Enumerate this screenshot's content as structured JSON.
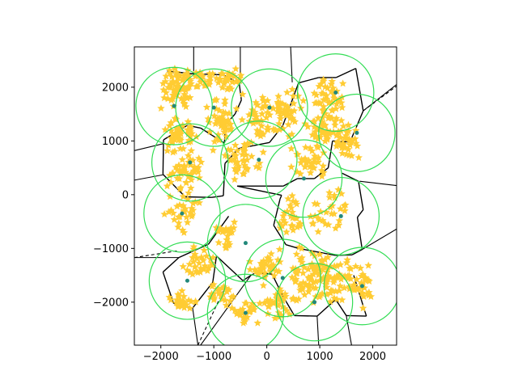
{
  "chart_data": {
    "type": "scatter",
    "title": "",
    "xlabel": "",
    "ylabel": "",
    "xlim": [
      -2500,
      2450
    ],
    "ylim": [
      -2800,
      2750
    ],
    "grid": false,
    "xticks": [
      -2000,
      -1000,
      0,
      1000,
      2000
    ],
    "yticks": [
      -2000,
      -1000,
      0,
      1000,
      2000
    ],
    "xtick_labels": [
      "−2000",
      "−1000",
      "0",
      "1000",
      "2000"
    ],
    "ytick_labels": [
      "−2000",
      "−1000",
      "0",
      "1000",
      "2000"
    ],
    "colors": {
      "circle": "#33dd55",
      "points": "#ffcc33",
      "sites": "#22887a",
      "edges": "#000000"
    },
    "circle_radius": 720,
    "sites": [
      [
        -1750,
        1650
      ],
      [
        -1000,
        1620
      ],
      [
        50,
        1620
      ],
      [
        1300,
        1900
      ],
      [
        1700,
        1150
      ],
      [
        -1450,
        600
      ],
      [
        -150,
        650
      ],
      [
        700,
        300
      ],
      [
        1400,
        -400
      ],
      [
        -1600,
        -350
      ],
      [
        -400,
        -900
      ],
      [
        -1500,
        -1600
      ],
      [
        -400,
        -2200
      ],
      [
        300,
        -1550
      ],
      [
        900,
        -2000
      ],
      [
        1800,
        -1700
      ]
    ],
    "cell_vertices": [
      [
        -1880,
        2300
      ],
      [
        -1400,
        2250
      ],
      [
        -820,
        2230
      ],
      [
        -520,
        2070
      ],
      [
        -480,
        1760
      ],
      [
        -600,
        1500
      ],
      [
        -780,
        1300
      ],
      [
        -800,
        960
      ],
      [
        -1250,
        1240
      ],
      [
        -1500,
        1290
      ],
      [
        -1950,
        1020
      ],
      [
        -1960,
        380
      ],
      [
        -1540,
        -40
      ],
      [
        -1040,
        -50
      ],
      [
        -820,
        -20
      ],
      [
        -790,
        580
      ],
      [
        -530,
        860
      ],
      [
        50,
        970
      ],
      [
        300,
        1280
      ],
      [
        600,
        2080
      ],
      [
        980,
        2180
      ],
      [
        1310,
        2180
      ],
      [
        1680,
        2350
      ],
      [
        1820,
        1560
      ],
      [
        1570,
        980
      ],
      [
        1240,
        1000
      ],
      [
        1160,
        500
      ],
      [
        900,
        300
      ],
      [
        580,
        300
      ],
      [
        310,
        160
      ],
      [
        -560,
        160
      ],
      [
        280,
        -10
      ],
      [
        250,
        -80
      ],
      [
        130,
        -570
      ],
      [
        360,
        -930
      ],
      [
        600,
        -1000
      ],
      [
        1300,
        -1130
      ],
      [
        1610,
        -1120
      ],
      [
        1800,
        -1020
      ],
      [
        1710,
        -420
      ],
      [
        1820,
        -280
      ],
      [
        1730,
        250
      ],
      [
        1420,
        400
      ],
      [
        -720,
        -400
      ],
      [
        -1100,
        -920
      ],
      [
        -1660,
        -1170
      ],
      [
        -1960,
        -1440
      ],
      [
        -1760,
        -2020
      ],
      [
        -1400,
        -2110
      ],
      [
        -1020,
        -1630
      ],
      [
        -950,
        -1140
      ],
      [
        -450,
        -1600
      ],
      [
        -300,
        -1500
      ],
      [
        -200,
        -1450
      ],
      [
        100,
        -1480
      ],
      [
        300,
        -1880
      ],
      [
        520,
        -2250
      ],
      [
        950,
        -2260
      ],
      [
        1300,
        -1950
      ],
      [
        1500,
        -2250
      ],
      [
        1880,
        -2260
      ],
      [
        1640,
        -1500
      ]
    ],
    "outer_lines": [
      [
        [
          -1380,
          2300
        ],
        [
          -1380,
          2750
        ]
      ],
      [
        [
          -500,
          2070
        ],
        [
          -500,
          2750
        ]
      ],
      [
        [
          480,
          2090
        ],
        [
          450,
          2750
        ]
      ],
      [
        [
          -1950,
          950
        ],
        [
          -2500,
          820
        ]
      ],
      [
        [
          -1960,
          370
        ],
        [
          -2500,
          270
        ]
      ],
      [
        [
          1820,
          1560
        ],
        [
          2450,
          2050
        ]
      ],
      [
        [
          1750,
          250
        ],
        [
          2450,
          170
        ]
      ],
      [
        [
          1800,
          -1020
        ],
        [
          2450,
          -640
        ]
      ],
      [
        [
          -1660,
          -1170
        ],
        [
          -2500,
          -1170
        ]
      ],
      [
        [
          -1400,
          -2110
        ],
        [
          -1300,
          -2800
        ]
      ],
      [
        [
          -300,
          -1500
        ],
        [
          -1250,
          -2800
        ]
      ],
      [
        [
          950,
          -2260
        ],
        [
          980,
          -2800
        ]
      ],
      [
        [
          1500,
          -2250
        ],
        [
          1600,
          -2800
        ]
      ]
    ],
    "dashed_lines": [
      [
        [
          -2500,
          -1170
        ],
        [
          -1660,
          -1040
        ]
      ],
      [
        [
          -1300,
          -2800
        ],
        [
          -780,
          -1700
        ]
      ],
      [
        [
          1820,
          1560
        ],
        [
          2450,
          2020
        ]
      ]
    ],
    "point_clusters": [
      [
        -1700,
        1950,
        320,
        380,
        60
      ],
      [
        -1300,
        2150,
        300,
        150,
        30
      ],
      [
        -700,
        2150,
        250,
        180,
        30
      ],
      [
        -1650,
        1100,
        280,
        300,
        50
      ],
      [
        -1500,
        500,
        300,
        350,
        50
      ],
      [
        -850,
        1300,
        250,
        500,
        45
      ],
      [
        -450,
        650,
        350,
        350,
        40
      ],
      [
        -100,
        1500,
        380,
        380,
        50
      ],
      [
        400,
        1550,
        300,
        400,
        40
      ],
      [
        1150,
        1800,
        300,
        320,
        45
      ],
      [
        1100,
        1200,
        350,
        250,
        50
      ],
      [
        1500,
        1000,
        250,
        300,
        30
      ],
      [
        800,
        600,
        300,
        300,
        35
      ],
      [
        -1600,
        -300,
        300,
        400,
        35
      ],
      [
        -800,
        -800,
        250,
        300,
        25
      ],
      [
        -1300,
        -1300,
        300,
        300,
        30
      ],
      [
        -1600,
        -2000,
        250,
        200,
        30
      ],
      [
        -900,
        -1900,
        250,
        250,
        25
      ],
      [
        0,
        -1300,
        300,
        300,
        35
      ],
      [
        200,
        -2000,
        300,
        300,
        40
      ],
      [
        800,
        -1500,
        350,
        500,
        70
      ],
      [
        1300,
        -1600,
        350,
        400,
        55
      ],
      [
        1800,
        -1700,
        200,
        400,
        30
      ],
      [
        500,
        -400,
        300,
        400,
        30
      ],
      [
        1200,
        -300,
        300,
        400,
        30
      ],
      [
        -400,
        -2200,
        250,
        200,
        25
      ]
    ]
  }
}
